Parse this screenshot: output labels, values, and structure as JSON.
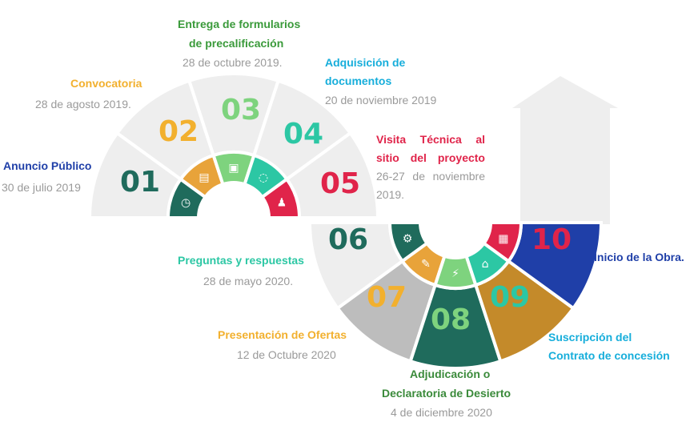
{
  "steps": [
    {
      "num": "01",
      "title": "Anuncio Público",
      "date": "30 de julio 2019"
    },
    {
      "num": "02",
      "title": "Convocatoria",
      "date": "28 de agosto 2019."
    },
    {
      "num": "03",
      "title_l1": "Entrega de formularios",
      "title_l2": "de precalificación",
      "date": "28 de octubre 2019."
    },
    {
      "num": "04",
      "title_l1": "Adquisición de",
      "title_l2": "documentos",
      "date": "20 de noviembre 2019"
    },
    {
      "num": "05",
      "title_l1": "Visita Técnica al",
      "title_l2": "sitio del proyecto",
      "date_l1": "26-27 de noviembre",
      "date_l2": "2019."
    },
    {
      "num": "06",
      "title": "Preguntas y respuestas",
      "date": "28 de mayo 2020."
    },
    {
      "num": "07",
      "title": "Presentación de Ofertas",
      "date": "12 de Octubre 2020"
    },
    {
      "num": "08",
      "title_l1": "Adjudicación o",
      "title_l2": "Declaratoria de Desierto",
      "date": "4 de diciembre 2020"
    },
    {
      "num": "09",
      "title_l1": "Suscripción del",
      "title_l2": "Contrato de concesión"
    },
    {
      "num": "10",
      "title": "Inicio de la Obra."
    }
  ],
  "icons": [
    "clock-icon",
    "clipboard-icon",
    "document-icon",
    "chat-icon",
    "people-icon",
    "gear-icon",
    "megaphone-icon",
    "lightning-icon",
    "bank-icon",
    "presentation-icon"
  ],
  "colors": {
    "segment_light": "#eeeeee",
    "segment_07": "#bdbdbd",
    "segment_08": "#1f6b5c",
    "segment_09": "#c48a2a",
    "segment_10": "#1f3fa8",
    "tab_01": "#1f6b5c",
    "tab_02": "#e8a33a",
    "tab_03": "#7ed37e",
    "tab_04": "#2cc7a4",
    "tab_05": "#e0244a",
    "tab_06": "#1f6b5c",
    "tab_07": "#e8a33a",
    "tab_08": "#7ed37e",
    "tab_09": "#2cc7a4",
    "tab_10": "#e0244a",
    "arrow": "#eeeeee"
  }
}
